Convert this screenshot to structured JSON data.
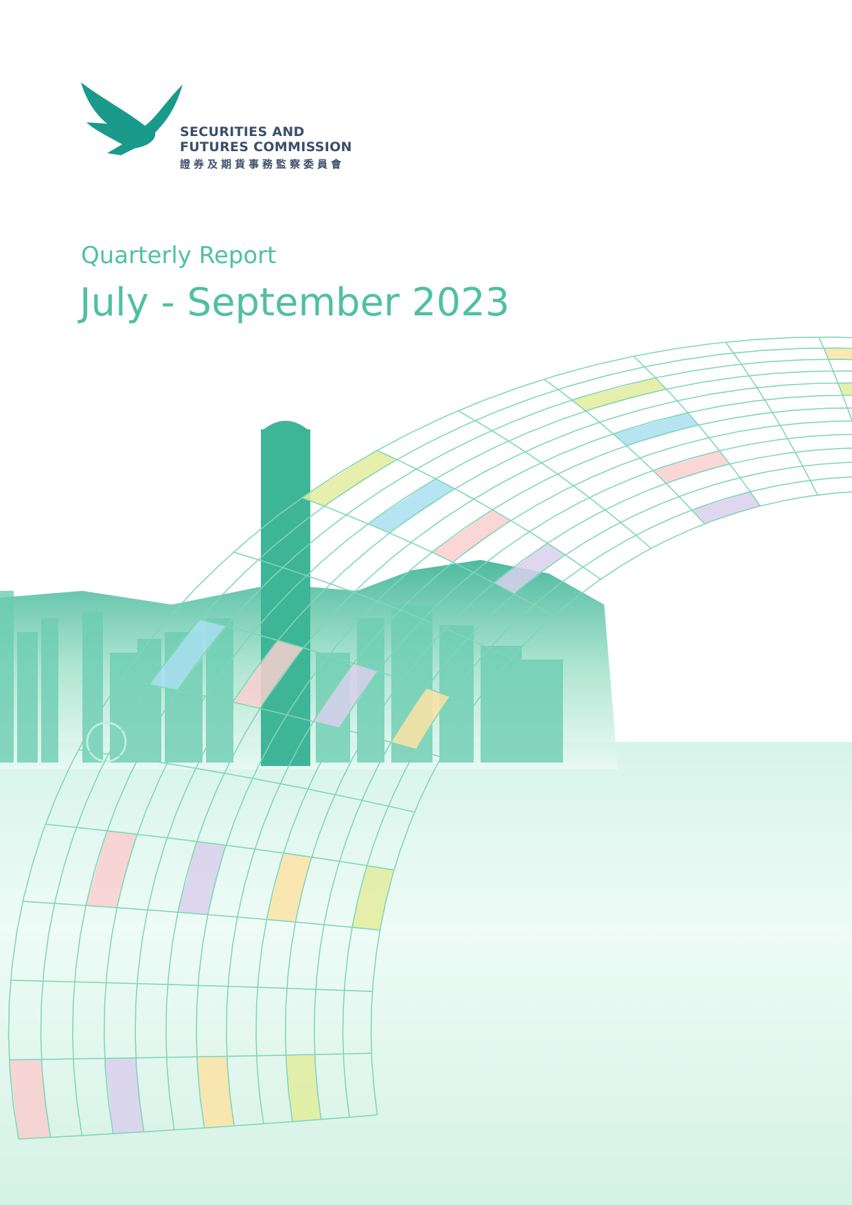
{
  "organization": {
    "name_line1": "SECURITIES AND",
    "name_line2": "FUTURES COMMISSION",
    "name_chinese": "證券及期貨事務監察委員會"
  },
  "report": {
    "type": "Quarterly Report",
    "period": "July - September 2023"
  },
  "colors": {
    "title": "#4fc0a0",
    "logo": "#1a9a8a",
    "org_text": "#3a4f6b",
    "grid_line": "#7fd6b8",
    "tile_colors": [
      "#f9cfcf",
      "#fbe3a4",
      "#a9dff0",
      "#d9d0ec",
      "#e2ec9c"
    ]
  }
}
